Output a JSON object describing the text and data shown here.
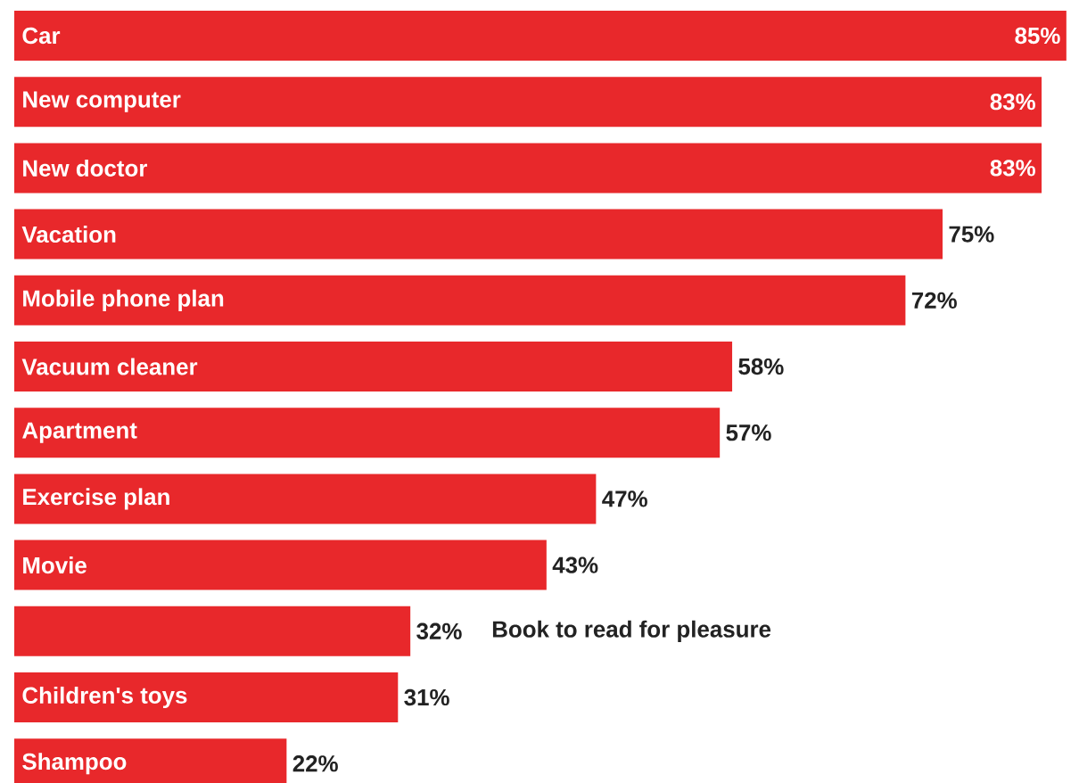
{
  "chart_data": {
    "type": "bar",
    "orientation": "horizontal",
    "color": "#e8282b",
    "categories": [
      "Car",
      "New computer",
      "New doctor",
      "Vacation",
      "Mobile phone plan",
      "Vacuum cleaner",
      "Apartment",
      "Exercise plan",
      "Movie",
      "Book to read for pleasure",
      "Children's toys",
      "Shampoo"
    ],
    "values": [
      85,
      83,
      83,
      75,
      72,
      58,
      57,
      47,
      43,
      32,
      31,
      22
    ],
    "value_labels": [
      "85%",
      "83%",
      "83%",
      "75%",
      "72%",
      "58%",
      "57%",
      "47%",
      "43%",
      "32%",
      "31%",
      "22%"
    ]
  }
}
